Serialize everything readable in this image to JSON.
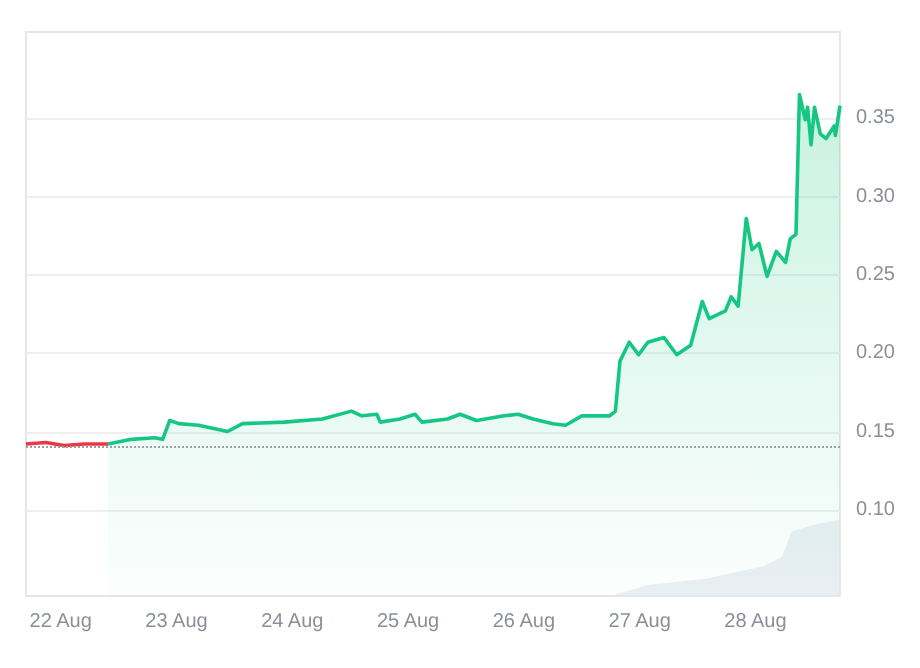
{
  "chart_data": {
    "type": "line",
    "xlim": [
      "--08-21T16:48",
      "--08-28T17:31"
    ],
    "xticks": [
      {
        "value": "--08-22",
        "label": "22 Aug"
      },
      {
        "value": "--08-23",
        "label": "23 Aug"
      },
      {
        "value": "--08-24",
        "label": "24 Aug"
      },
      {
        "value": "--08-25",
        "label": "25 Aug"
      },
      {
        "value": "--08-26",
        "label": "26 Aug"
      },
      {
        "value": "--08-27",
        "label": "27 Aug"
      },
      {
        "value": "--08-28",
        "label": "28 Aug"
      }
    ],
    "ylim": [
      0.045,
      0.405
    ],
    "yticks": [
      {
        "value": 0.1,
        "label": "0.10"
      },
      0.15,
      {
        "value": 0.2,
        "label": "0.20"
      },
      0.25,
      {
        "value": 0.3,
        "label": "0.30"
      },
      0.35
    ],
    "grid": "y",
    "series": [
      {
        "type": "area",
        "color": "#e3e8ee",
        "x": [
          "--08-26T18:58",
          "--08-27T01:41",
          "--08-27T13:41",
          "--08-28T01:41",
          "--08-28T05:31",
          "--08-28T07:26",
          "--08-28T11:31",
          "--08-28T17:31"
        ],
        "values": [
          0.046,
          0.052,
          0.056,
          0.064,
          0.07,
          0.086,
          0.09,
          0.094
        ]
      },
      {
        "type": "line",
        "color": "#ea3943",
        "x": [
          "--08-21T16:48",
          "--08-21T20:53",
          "--08-22T00:43",
          "--08-22T04:48",
          "--08-22T09:50"
        ],
        "values": [
          0.142,
          0.143,
          0.141,
          0.142,
          0.142
        ]
      },
      {
        "type": "area",
        "color": "#16c784",
        "x": [
          "--08-22T09:50",
          "--08-22T14:38",
          "--08-22T19:26",
          "--08-22T21:07",
          "--08-22T22:34",
          "--08-23T00:29",
          "--08-23T04:34",
          "--08-23T10:34",
          "--08-23T13:41",
          "--08-23T22:19",
          "--08-24T06:14",
          "--08-24T12:14",
          "--08-24T14:24",
          "--08-24T17:31",
          "--08-24T18:14",
          "--08-24T22:19",
          "--08-25T01:26",
          "--08-25T02:53",
          "--08-25T08:10",
          "--08-25T10:48",
          "--08-25T14:10",
          "--08-25T19:55",
          "--08-25T22:48",
          "--08-26T01:55",
          "--08-26T06:00",
          "--08-26T08:38",
          "--08-26T12:00",
          "--08-26T17:46",
          "--08-26T18:58",
          "--08-26T19:55",
          "--08-26T21:50",
          "--08-26T23:46",
          "--08-27T01:41",
          "--08-27T05:02",
          "--08-27T07:41",
          "--08-27T10:34",
          "--08-27T12:58",
          "--08-27T14:24",
          "--08-27T17:46",
          "--08-27T18:58",
          "--08-27T20:24",
          "--08-27T22:05",
          "--08-27T23:17",
          "--08-28T00:43",
          "--08-28T02:24",
          "--08-28T04:19",
          "--08-28T06:14",
          "--08-28T07:12",
          "--08-28T08:24",
          "--08-28T09:07",
          "--08-28T10:19",
          "--08-28T10:48",
          "--08-28T11:31",
          "--08-28T12:14",
          "--08-28T13:26",
          "--08-28T14:38",
          "--08-28T16:19",
          "--08-28T16:34",
          "--08-28T17:31"
        ],
        "values": [
          0.142,
          0.145,
          0.146,
          0.145,
          0.157,
          0.155,
          0.154,
          0.15,
          0.155,
          0.156,
          0.158,
          0.163,
          0.16,
          0.161,
          0.156,
          0.158,
          0.161,
          0.156,
          0.158,
          0.161,
          0.157,
          0.16,
          0.161,
          0.158,
          0.155,
          0.154,
          0.16,
          0.16,
          0.163,
          0.195,
          0.207,
          0.199,
          0.207,
          0.21,
          0.199,
          0.205,
          0.233,
          0.222,
          0.227,
          0.236,
          0.23,
          0.286,
          0.266,
          0.27,
          0.249,
          0.265,
          0.258,
          0.273,
          0.276,
          0.365,
          0.349,
          0.357,
          0.333,
          0.357,
          0.34,
          0.337,
          0.345,
          0.339,
          0.358
        ]
      }
    ],
    "ref_lines": [
      {
        "axis": "y",
        "value": 0.142,
        "color": "#9aa0a6",
        "line_style": "dotted"
      }
    ]
  }
}
